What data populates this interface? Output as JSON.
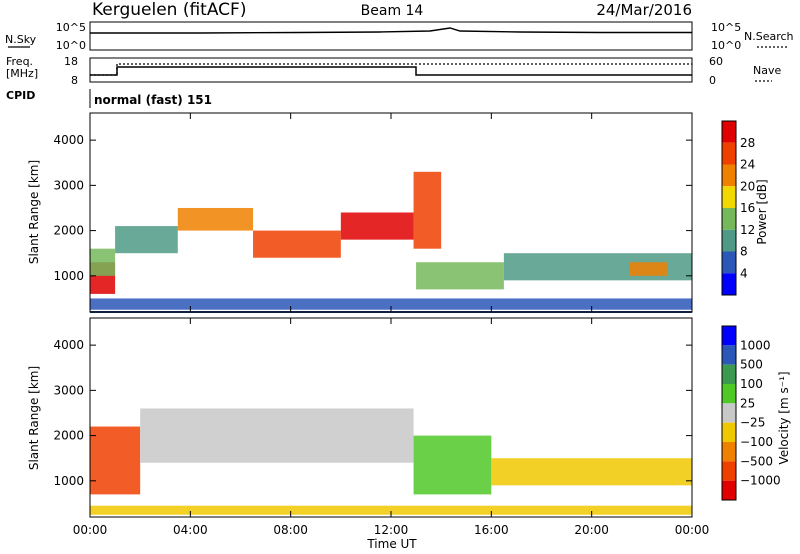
{
  "header": {
    "radar": "Kerguelen (fitACF)",
    "beam": "Beam 14",
    "date": "24/Mar/2016"
  },
  "top_panels": {
    "nsky_label": "N.Sky",
    "nsky_ticks": [
      "10^5",
      "10^0"
    ],
    "nsearch_label": "N.Search",
    "nsearch_ticks": [
      "10^5",
      "10^0"
    ],
    "freq_label_1": "Freq.",
    "freq_label_2": "[MHz]",
    "freq_ticks": [
      "18",
      "8"
    ],
    "nave_label": "Nave",
    "nave_ticks": [
      "60",
      "0"
    ],
    "cpid_label": "CPID",
    "cpid_value": "normal (fast) 151"
  },
  "colors": {
    "power_scale": [
      "#0000ff",
      "#2b57b8",
      "#4f9a86",
      "#74b85a",
      "#f0d800",
      "#f08000",
      "#f04000",
      "#e00000"
    ],
    "velocity_scale": [
      "#e00000",
      "#f04000",
      "#f08000",
      "#f0c800",
      "#c8c8c8",
      "#50c828",
      "#3c9a50",
      "#2b57b8",
      "#0000ff"
    ]
  },
  "chart_data": [
    {
      "type": "heatmap",
      "title": "",
      "ylabel": "Slant Range [km]",
      "xlabel": "",
      "ylim": [
        200,
        4600
      ],
      "yticks": [
        "4000",
        "3000",
        "2000",
        "1000"
      ],
      "xticks": [
        "00:00",
        "04:00",
        "08:00",
        "12:00",
        "16:00",
        "20:00",
        "00:00"
      ],
      "colorbar": {
        "label": "Power [dB]",
        "ticks": [
          "28",
          "24",
          "20",
          "16",
          "12",
          "8",
          "4"
        ]
      },
      "echo_bands": [
        {
          "t": [
            0.0,
            1.0
          ],
          "range": [
            600,
            1300
          ],
          "level": 7
        },
        {
          "t": [
            0.0,
            1.0
          ],
          "range": [
            1000,
            1600
          ],
          "level": 3
        },
        {
          "t": [
            1.0,
            3.5
          ],
          "range": [
            1500,
            2100
          ],
          "level": 2
        },
        {
          "t": [
            3.5,
            6.5
          ],
          "range": [
            2000,
            2500
          ],
          "level": 5
        },
        {
          "t": [
            6.5,
            10.0
          ],
          "range": [
            1400,
            2000
          ],
          "level": 6
        },
        {
          "t": [
            10.0,
            12.9
          ],
          "range": [
            1800,
            2400
          ],
          "level": 7
        },
        {
          "t": [
            12.9,
            14.0
          ],
          "range": [
            1600,
            3300
          ],
          "level": 6
        },
        {
          "t": [
            13.0,
            16.5
          ],
          "range": [
            700,
            1300
          ],
          "level": 3
        },
        {
          "t": [
            16.5,
            24.0
          ],
          "range": [
            900,
            1500
          ],
          "level": 2
        },
        {
          "t": [
            21.5,
            23.0
          ],
          "range": [
            1000,
            1300
          ],
          "level": 5
        },
        {
          "t": [
            0.0,
            24.0
          ],
          "range": [
            250,
            500
          ],
          "level": 1
        }
      ]
    },
    {
      "type": "heatmap",
      "title": "",
      "ylabel": "Slant Range [km]",
      "xlabel": "Time UT",
      "ylim": [
        200,
        4600
      ],
      "yticks": [
        "4000",
        "3000",
        "2000",
        "1000"
      ],
      "xticks": [
        "00:00",
        "04:00",
        "08:00",
        "12:00",
        "16:00",
        "20:00",
        "00:00"
      ],
      "colorbar": {
        "label": "Velocity [m s⁻¹]",
        "ticks": [
          "1000",
          "500",
          "100",
          "25",
          "−25",
          "−100",
          "−500",
          "−1000"
        ]
      },
      "echo_bands": [
        {
          "t": [
            0.0,
            2.0
          ],
          "range": [
            700,
            2200
          ],
          "level": 1
        },
        {
          "t": [
            2.0,
            12.9
          ],
          "range": [
            1400,
            2600
          ],
          "level": 4
        },
        {
          "t": [
            12.9,
            16.0
          ],
          "range": [
            700,
            2000
          ],
          "level": 5
        },
        {
          "t": [
            16.0,
            24.0
          ],
          "range": [
            900,
            1500
          ],
          "level": 3
        },
        {
          "t": [
            0.0,
            24.0
          ],
          "range": [
            250,
            450
          ],
          "level": 3
        }
      ]
    }
  ]
}
